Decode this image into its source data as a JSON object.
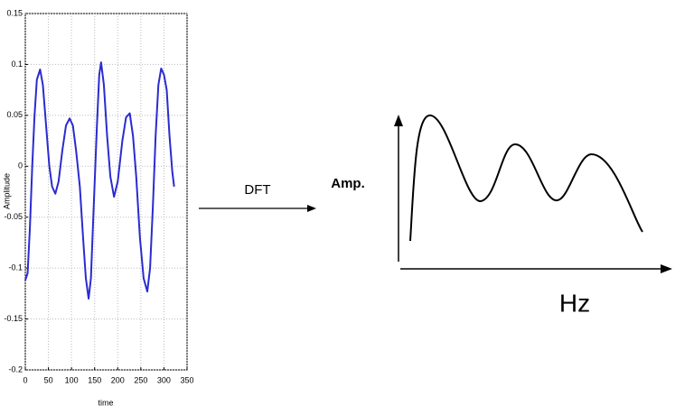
{
  "chart_data": {
    "type": "line",
    "x_label": "time",
    "y_label": "Amplitude",
    "x": [
      0,
      5,
      10,
      15,
      20,
      25,
      32,
      38,
      45,
      52,
      58,
      65,
      72,
      80,
      88,
      96,
      103,
      110,
      118,
      125,
      131,
      137,
      142,
      148,
      155,
      160,
      164,
      170,
      177,
      184,
      192,
      200,
      210,
      218,
      226,
      233,
      240,
      248,
      256,
      264,
      270,
      276,
      282,
      288,
      294,
      300,
      306,
      312,
      318,
      322
    ],
    "values": [
      -0.112,
      -0.105,
      -0.06,
      0.0,
      0.05,
      0.085,
      0.095,
      0.08,
      0.04,
      0.0,
      -0.02,
      -0.027,
      -0.015,
      0.015,
      0.04,
      0.047,
      0.04,
      0.015,
      -0.02,
      -0.07,
      -0.11,
      -0.13,
      -0.11,
      -0.04,
      0.04,
      0.09,
      0.102,
      0.08,
      0.03,
      -0.01,
      -0.03,
      -0.015,
      0.025,
      0.048,
      0.052,
      0.03,
      -0.01,
      -0.07,
      -0.11,
      -0.123,
      -0.1,
      -0.04,
      0.03,
      0.08,
      0.096,
      0.09,
      0.075,
      0.03,
      -0.005,
      -0.02
    ],
    "color": "#2b2bd0",
    "xlim": [
      0,
      350
    ],
    "xticks": [
      0,
      50,
      100,
      150,
      200,
      250,
      300,
      350
    ],
    "ylim": [
      -0.2,
      0.15
    ],
    "yticks": [
      -0.2,
      -0.15,
      -0.1,
      -0.05,
      0,
      0.05,
      0.1,
      0.15
    ],
    "grid": true
  },
  "arrow_label": "DFT",
  "spectrum": {
    "y_label": "Amp.",
    "x_label": "Hz"
  }
}
